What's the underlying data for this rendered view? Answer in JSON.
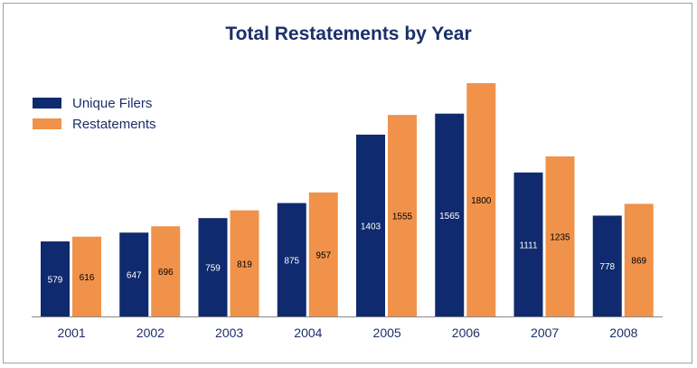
{
  "chart_data": {
    "type": "bar",
    "title": "Total Restatements by Year",
    "categories": [
      "2001",
      "2002",
      "2003",
      "2004",
      "2005",
      "2006",
      "2007",
      "2008"
    ],
    "series": [
      {
        "name": "Unique Filers",
        "color": "#0f2a6e",
        "values": [
          579,
          647,
          759,
          875,
          1403,
          1565,
          1111,
          778
        ]
      },
      {
        "name": "Restatements",
        "color": "#f0924a",
        "values": [
          616,
          696,
          819,
          957,
          1555,
          1800,
          1235,
          869
        ]
      }
    ],
    "xlabel": "",
    "ylabel": "",
    "ylim": [
      0,
      1800
    ],
    "grid": false,
    "legend_position": "top-left",
    "data_labels": true
  }
}
